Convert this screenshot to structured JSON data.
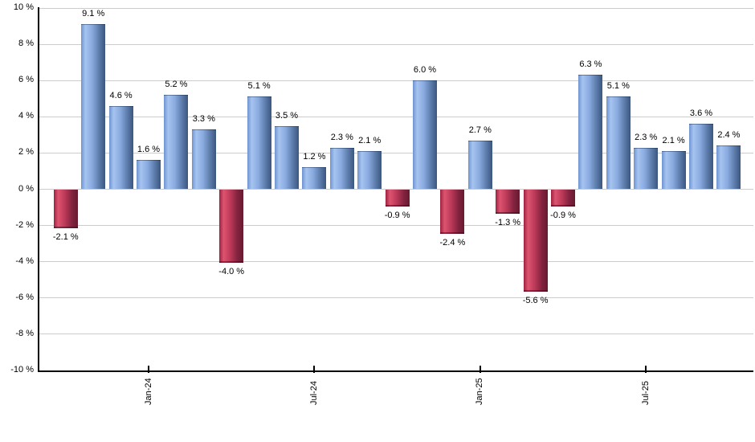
{
  "chart_data": {
    "type": "bar",
    "title": "",
    "xlabel": "",
    "ylabel": "",
    "grid": "horizontal",
    "legend": "none",
    "y_axis": {
      "min": -10,
      "max": 10,
      "step": 2,
      "label_suffix": " %",
      "tick_labels": [
        "10 %",
        "8 %",
        "6 %",
        "4 %",
        "2 %",
        "0 %",
        "-2 %",
        "-4 %",
        "-6 %",
        "-8 %",
        "-10 %"
      ]
    },
    "x_tick_labels": [
      {
        "bar_index": 3,
        "label": "Jan-24"
      },
      {
        "bar_index": 9,
        "label": "Jul-24"
      },
      {
        "bar_index": 15,
        "label": "Jan-25"
      },
      {
        "bar_index": 21,
        "label": "Jul-25"
      }
    ],
    "values": [
      -2.1,
      9.1,
      4.6,
      1.6,
      5.2,
      3.3,
      -4.0,
      5.1,
      3.5,
      1.2,
      2.3,
      2.1,
      -0.9,
      6.0,
      -2.4,
      2.7,
      -1.3,
      -5.6,
      -0.9,
      6.3,
      5.1,
      2.3,
      2.1,
      3.6,
      2.4
    ],
    "bar_value_labels": [
      "-2.1 %",
      "9.1 %",
      "4.6 %",
      "1.6 %",
      "5.2 %",
      "3.3 %",
      "-4.0 %",
      "5.1 %",
      "3.5 %",
      "1.2 %",
      "2.3 %",
      "2.1 %",
      "-0.9 %",
      "6.0 %",
      "-2.4 %",
      "2.7 %",
      "-1.3 %",
      "-5.6 %",
      "-0.9 %",
      "6.3 %",
      "5.1 %",
      "2.3 %",
      "2.1 %",
      "3.6 %",
      "2.4 %"
    ],
    "bar_value_label_suffix": " %",
    "colors": {
      "background": "#ffffff",
      "gridline": "#cccccc",
      "axis": "#000000",
      "text": "#000000",
      "positive_bar_gradient": [
        "#6e93cf",
        "#a6c4f0",
        "#8aabe0",
        "#5c7cab",
        "#3c567f"
      ],
      "negative_bar_gradient": [
        "#9c2240",
        "#dd5470",
        "#bd3a59",
        "#832340",
        "#671a2f"
      ],
      "gradient_stops_pct": [
        0,
        18,
        45,
        75,
        100
      ]
    }
  }
}
